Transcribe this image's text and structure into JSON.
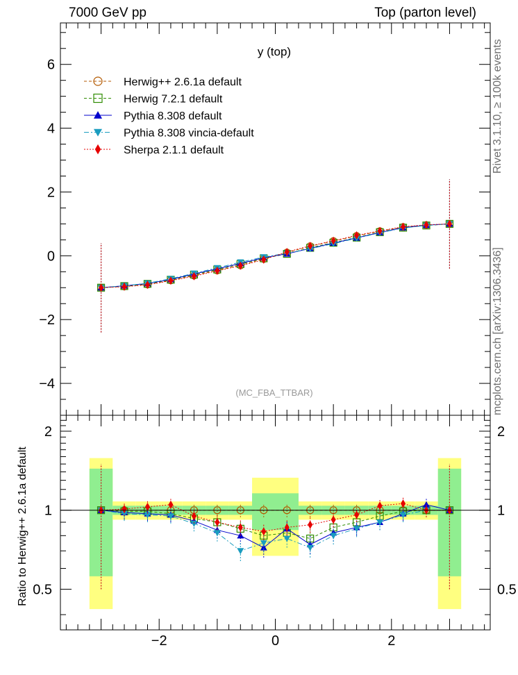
{
  "header": {
    "left": "7000 GeV pp",
    "right": "Top (parton level)"
  },
  "side_labels": {
    "rivet": "Rivet 3.1.10, ≥ 100k events",
    "mcplots": "mcplots.cern.ch [arXiv:1306.3436]"
  },
  "chart_data": {
    "type": "line",
    "title": "y (top)",
    "watermark": "(MC_FBA_TTBAR)",
    "xlabel": "",
    "ylabel": "",
    "ratio_ylabel": "Ratio to Herwig++ 2.6.1a default",
    "xlim": [
      -3.7,
      3.7
    ],
    "ylim": [
      -5.0,
      7.3
    ],
    "ratio_ylim": [
      0.35,
      2.3
    ],
    "xticks": [
      -2,
      0,
      2
    ],
    "xtick_labels": [
      "−2",
      "0",
      "2"
    ],
    "yticks": [
      -4,
      -2,
      0,
      2,
      4,
      6
    ],
    "ytick_labels": [
      "−4",
      "−2",
      "0",
      "2",
      "4",
      "6"
    ],
    "ratio_yticks": [
      0.5,
      1,
      2
    ],
    "ratio_ytick_labels": [
      "0.5",
      "1",
      "2"
    ],
    "reference": "Herwig++ 2.6.1a default",
    "legend_position": "top-left",
    "series": [
      {
        "name": "Herwig++ 2.6.1a default",
        "color": "#b35900",
        "marker": "circle-open",
        "line": "dashed",
        "x": [
          -3.0,
          -2.6,
          -2.2,
          -1.8,
          -1.4,
          -1.0,
          -0.6,
          -0.2,
          0.2,
          0.6,
          1.0,
          1.4,
          1.8,
          2.2,
          2.6,
          3.0
        ],
        "y": [
          -1.0,
          -0.96,
          -0.9,
          -0.77,
          -0.62,
          -0.46,
          -0.3,
          -0.1,
          0.1,
          0.3,
          0.46,
          0.62,
          0.77,
          0.9,
          0.96,
          1.0
        ],
        "ratio": [
          1.0,
          1.0,
          1.0,
          1.0,
          1.0,
          1.0,
          1.0,
          1.0,
          1.0,
          1.0,
          1.0,
          1.0,
          1.0,
          1.0,
          1.0,
          1.0
        ]
      },
      {
        "name": "Herwig 7.2.1 default",
        "color": "#2e8b00",
        "marker": "square-open",
        "line": "dashed",
        "x": [
          -3.0,
          -2.6,
          -2.2,
          -1.8,
          -1.4,
          -1.0,
          -0.6,
          -0.2,
          0.2,
          0.6,
          1.0,
          1.4,
          1.8,
          2.2,
          2.6,
          3.0
        ],
        "y": [
          -1.0,
          -0.95,
          -0.88,
          -0.75,
          -0.59,
          -0.43,
          -0.26,
          -0.08,
          0.06,
          0.25,
          0.41,
          0.57,
          0.74,
          0.88,
          0.95,
          1.0
        ],
        "ratio": [
          1.0,
          0.99,
          0.99,
          0.97,
          0.93,
          0.9,
          0.85,
          0.8,
          0.82,
          0.78,
          0.86,
          0.9,
          0.95,
          0.99,
          1.0,
          1.0
        ]
      },
      {
        "name": "Pythia 8.308 default",
        "color": "#0000cc",
        "marker": "triangle-up",
        "line": "solid",
        "x": [
          -3.0,
          -2.6,
          -2.2,
          -1.8,
          -1.4,
          -1.0,
          -0.6,
          -0.2,
          0.2,
          0.6,
          1.0,
          1.4,
          1.8,
          2.2,
          2.6,
          3.0
        ],
        "y": [
          -1.0,
          -0.94,
          -0.87,
          -0.74,
          -0.57,
          -0.41,
          -0.24,
          -0.06,
          0.06,
          0.23,
          0.4,
          0.56,
          0.73,
          0.88,
          0.96,
          1.0
        ],
        "ratio": [
          1.0,
          0.98,
          0.97,
          0.96,
          0.91,
          0.84,
          0.8,
          0.72,
          0.85,
          0.74,
          0.82,
          0.86,
          0.9,
          0.97,
          1.05,
          1.0
        ]
      },
      {
        "name": "Pythia 8.308 vincia-default",
        "color": "#1a9cbf",
        "marker": "triangle-down",
        "line": "dashdot",
        "x": [
          -3.0,
          -2.6,
          -2.2,
          -1.8,
          -1.4,
          -1.0,
          -0.6,
          -0.2,
          0.2,
          0.6,
          1.0,
          1.4,
          1.8,
          2.2,
          2.6,
          3.0
        ],
        "y": [
          -1.0,
          -0.94,
          -0.86,
          -0.72,
          -0.55,
          -0.38,
          -0.2,
          -0.04,
          0.08,
          0.22,
          0.38,
          0.55,
          0.72,
          0.87,
          0.95,
          1.0
        ],
        "ratio": [
          1.0,
          0.97,
          0.96,
          0.95,
          0.89,
          0.82,
          0.7,
          0.75,
          0.78,
          0.72,
          0.8,
          0.85,
          0.9,
          0.96,
          1.0,
          1.0
        ]
      },
      {
        "name": "Sherpa 2.1.1 default",
        "color": "#e60000",
        "marker": "diamond",
        "line": "dotted",
        "x": [
          -3.0,
          -2.6,
          -2.2,
          -1.8,
          -1.4,
          -1.0,
          -0.6,
          -0.2,
          0.2,
          0.6,
          1.0,
          1.4,
          1.8,
          2.2,
          2.6,
          3.0
        ],
        "y": [
          -1.0,
          -0.97,
          -0.91,
          -0.78,
          -0.64,
          -0.47,
          -0.31,
          -0.12,
          0.12,
          0.31,
          0.47,
          0.64,
          0.78,
          0.91,
          0.97,
          1.0
        ],
        "ratio": [
          1.0,
          1.01,
          1.03,
          1.05,
          0.95,
          0.9,
          0.86,
          0.83,
          0.86,
          0.88,
          0.92,
          0.96,
          1.04,
          1.06,
          1.0,
          1.0
        ]
      }
    ]
  }
}
